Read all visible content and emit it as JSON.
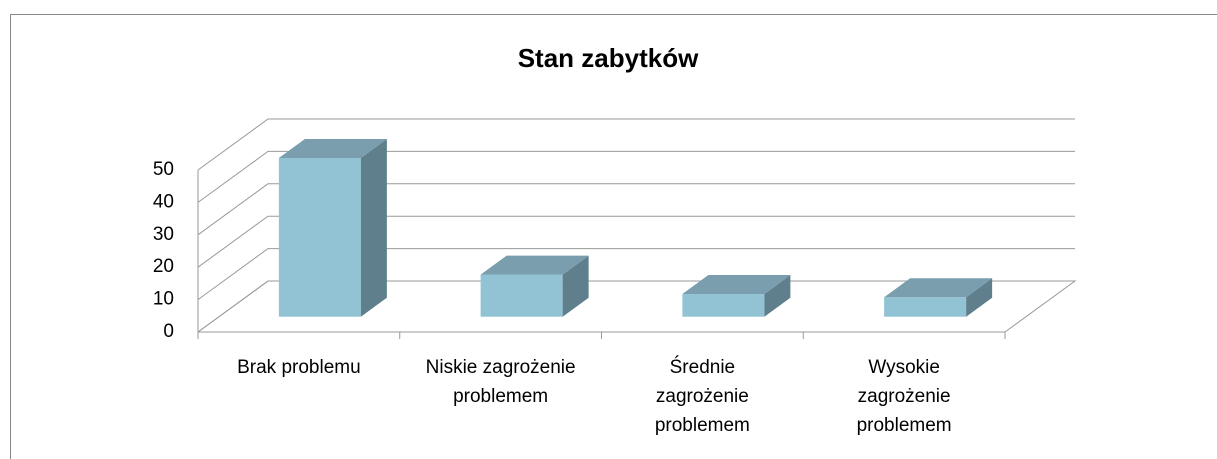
{
  "chart_data": {
    "type": "bar3d",
    "title": "Stan zabytków",
    "categories": [
      "Brak problemu",
      "Niskie zagrożenie problemem",
      "Średnie zagrożenie problemem",
      "Wysokie zagrożenie problemem"
    ],
    "values": [
      49,
      13,
      7,
      6
    ],
    "color": "#92c3d5",
    "ylim": [
      0,
      50
    ],
    "yticks": [
      0,
      10,
      20,
      30,
      40,
      50
    ],
    "grid": true
  }
}
